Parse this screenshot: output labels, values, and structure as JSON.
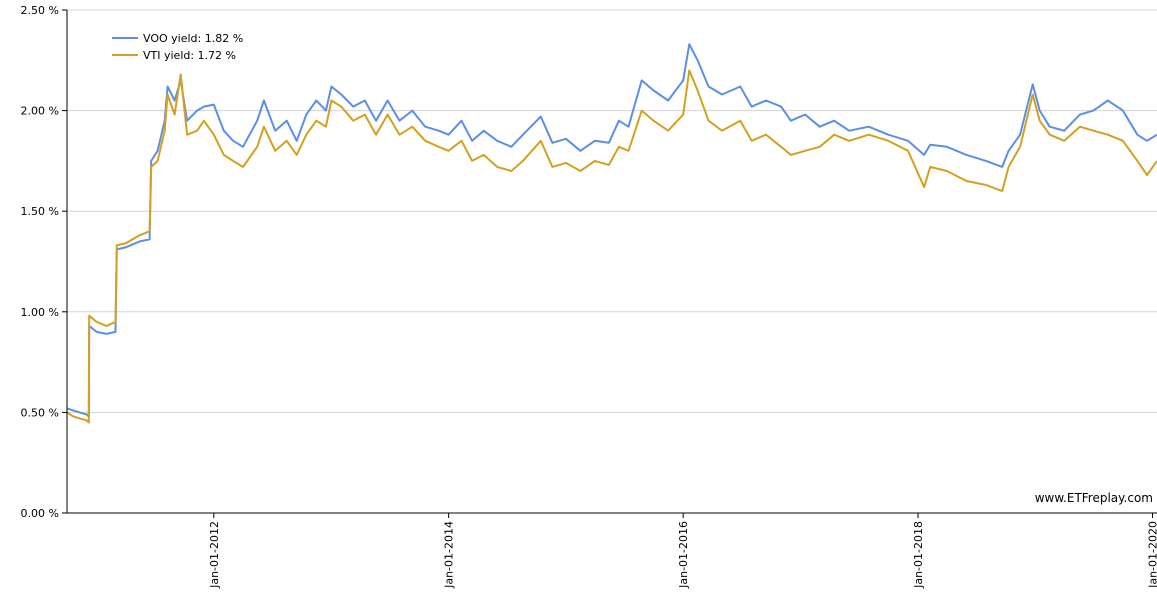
{
  "chart_data": {
    "type": "line",
    "ylim": [
      0,
      2.5
    ],
    "xlim": [
      "2010-10-01",
      "2020-01-15"
    ],
    "y_ticks": [
      "0.00 %",
      "0.50 %",
      "1.00 %",
      "1.50 %",
      "2.00 %",
      "2.50 %"
    ],
    "x_ticks": [
      "Jan-01-2012",
      "Jan-01-2014",
      "Jan-01-2016",
      "Jan-01-2018",
      "Jan-01-2020"
    ],
    "grid": true,
    "legend_position": "top-left",
    "legend": [
      "VOO yield: 1.82 %",
      "VTI yield: 1.72 %"
    ],
    "watermark": "www.ETFreplay.com",
    "series": [
      {
        "name": "VOO yield: 1.82 %",
        "color": "#5b8fe6",
        "points": [
          [
            "2010-10-01",
            0.52
          ],
          [
            "2010-10-20",
            0.51
          ],
          [
            "2010-11-10",
            0.5
          ],
          [
            "2010-12-01",
            0.49
          ],
          [
            "2010-12-08",
            0.48
          ],
          [
            "2010-12-09",
            0.93
          ],
          [
            "2011-01-01",
            0.9
          ],
          [
            "2011-02-01",
            0.89
          ],
          [
            "2011-03-01",
            0.9
          ],
          [
            "2011-03-05",
            1.31
          ],
          [
            "2011-04-01",
            1.32
          ],
          [
            "2011-05-15",
            1.35
          ],
          [
            "2011-06-15",
            1.36
          ],
          [
            "2011-06-20",
            1.75
          ],
          [
            "2011-07-10",
            1.8
          ],
          [
            "2011-08-01",
            1.95
          ],
          [
            "2011-08-10",
            2.12
          ],
          [
            "2011-09-01",
            2.05
          ],
          [
            "2011-09-20",
            2.15
          ],
          [
            "2011-10-10",
            1.95
          ],
          [
            "2011-11-10",
            2.0
          ],
          [
            "2011-12-01",
            2.02
          ],
          [
            "2012-01-01",
            2.03
          ],
          [
            "2012-02-01",
            1.9
          ],
          [
            "2012-03-01",
            1.85
          ],
          [
            "2012-04-01",
            1.82
          ],
          [
            "2012-05-15",
            1.95
          ],
          [
            "2012-06-05",
            2.05
          ],
          [
            "2012-07-10",
            1.9
          ],
          [
            "2012-08-15",
            1.95
          ],
          [
            "2012-09-15",
            1.85
          ],
          [
            "2012-10-15",
            1.98
          ],
          [
            "2012-11-15",
            2.05
          ],
          [
            "2012-12-15",
            2.0
          ],
          [
            "2013-01-01",
            2.12
          ],
          [
            "2013-02-01",
            2.08
          ],
          [
            "2013-03-10",
            2.02
          ],
          [
            "2013-04-15",
            2.05
          ],
          [
            "2013-05-20",
            1.95
          ],
          [
            "2013-06-25",
            2.05
          ],
          [
            "2013-08-01",
            1.95
          ],
          [
            "2013-09-10",
            2.0
          ],
          [
            "2013-10-20",
            1.92
          ],
          [
            "2013-12-01",
            1.9
          ],
          [
            "2014-01-01",
            1.88
          ],
          [
            "2014-02-10",
            1.95
          ],
          [
            "2014-03-15",
            1.85
          ],
          [
            "2014-04-20",
            1.9
          ],
          [
            "2014-06-01",
            1.85
          ],
          [
            "2014-07-15",
            1.82
          ],
          [
            "2014-08-20",
            1.88
          ],
          [
            "2014-10-15",
            1.97
          ],
          [
            "2014-11-20",
            1.84
          ],
          [
            "2015-01-01",
            1.86
          ],
          [
            "2015-02-15",
            1.8
          ],
          [
            "2015-04-01",
            1.85
          ],
          [
            "2015-05-15",
            1.84
          ],
          [
            "2015-06-15",
            1.95
          ],
          [
            "2015-07-15",
            1.92
          ],
          [
            "2015-08-25",
            2.15
          ],
          [
            "2015-10-01",
            2.1
          ],
          [
            "2015-11-15",
            2.05
          ],
          [
            "2016-01-01",
            2.15
          ],
          [
            "2016-01-20",
            2.33
          ],
          [
            "2016-02-15",
            2.25
          ],
          [
            "2016-03-20",
            2.12
          ],
          [
            "2016-05-01",
            2.08
          ],
          [
            "2016-06-27",
            2.12
          ],
          [
            "2016-08-01",
            2.02
          ],
          [
            "2016-09-15",
            2.05
          ],
          [
            "2016-11-01",
            2.02
          ],
          [
            "2016-12-01",
            1.95
          ],
          [
            "2017-01-15",
            1.98
          ],
          [
            "2017-03-01",
            1.92
          ],
          [
            "2017-04-15",
            1.95
          ],
          [
            "2017-06-01",
            1.9
          ],
          [
            "2017-08-01",
            1.92
          ],
          [
            "2017-10-01",
            1.88
          ],
          [
            "2017-12-01",
            1.85
          ],
          [
            "2018-01-20",
            1.78
          ],
          [
            "2018-02-08",
            1.83
          ],
          [
            "2018-04-01",
            1.82
          ],
          [
            "2018-06-01",
            1.78
          ],
          [
            "2018-08-01",
            1.75
          ],
          [
            "2018-09-20",
            1.72
          ],
          [
            "2018-10-10",
            1.8
          ],
          [
            "2018-11-15",
            1.88
          ],
          [
            "2018-12-24",
            2.13
          ],
          [
            "2019-01-15",
            2.0
          ],
          [
            "2019-02-15",
            1.92
          ],
          [
            "2019-04-01",
            1.9
          ],
          [
            "2019-05-20",
            1.98
          ],
          [
            "2019-07-01",
            2.0
          ],
          [
            "2019-08-15",
            2.05
          ],
          [
            "2019-10-01",
            2.0
          ],
          [
            "2019-11-15",
            1.88
          ],
          [
            "2019-12-15",
            1.85
          ],
          [
            "2020-01-15",
            1.88
          ]
        ]
      },
      {
        "name": "VTI yield: 1.72 %",
        "color": "#d4a020",
        "points": [
          [
            "2010-10-01",
            0.5
          ],
          [
            "2010-10-20",
            0.48
          ],
          [
            "2010-11-10",
            0.47
          ],
          [
            "2010-12-01",
            0.46
          ],
          [
            "2010-12-08",
            0.45
          ],
          [
            "2010-12-09",
            0.98
          ],
          [
            "2011-01-01",
            0.95
          ],
          [
            "2011-02-01",
            0.93
          ],
          [
            "2011-03-01",
            0.95
          ],
          [
            "2011-03-05",
            1.33
          ],
          [
            "2011-04-01",
            1.34
          ],
          [
            "2011-05-15",
            1.38
          ],
          [
            "2011-06-15",
            1.4
          ],
          [
            "2011-06-20",
            1.72
          ],
          [
            "2011-07-10",
            1.75
          ],
          [
            "2011-08-01",
            1.9
          ],
          [
            "2011-08-10",
            2.08
          ],
          [
            "2011-09-01",
            1.98
          ],
          [
            "2011-09-20",
            2.18
          ],
          [
            "2011-10-10",
            1.88
          ],
          [
            "2011-11-10",
            1.9
          ],
          [
            "2011-12-01",
            1.95
          ],
          [
            "2012-01-01",
            1.88
          ],
          [
            "2012-02-01",
            1.78
          ],
          [
            "2012-03-01",
            1.75
          ],
          [
            "2012-04-01",
            1.72
          ],
          [
            "2012-05-15",
            1.82
          ],
          [
            "2012-06-05",
            1.92
          ],
          [
            "2012-07-10",
            1.8
          ],
          [
            "2012-08-15",
            1.85
          ],
          [
            "2012-09-15",
            1.78
          ],
          [
            "2012-10-15",
            1.88
          ],
          [
            "2012-11-15",
            1.95
          ],
          [
            "2012-12-15",
            1.92
          ],
          [
            "2013-01-01",
            2.05
          ],
          [
            "2013-02-01",
            2.02
          ],
          [
            "2013-03-10",
            1.95
          ],
          [
            "2013-04-15",
            1.98
          ],
          [
            "2013-05-20",
            1.88
          ],
          [
            "2013-06-25",
            1.98
          ],
          [
            "2013-08-01",
            1.88
          ],
          [
            "2013-09-10",
            1.92
          ],
          [
            "2013-10-20",
            1.85
          ],
          [
            "2013-12-01",
            1.82
          ],
          [
            "2014-01-01",
            1.8
          ],
          [
            "2014-02-10",
            1.85
          ],
          [
            "2014-03-15",
            1.75
          ],
          [
            "2014-04-20",
            1.78
          ],
          [
            "2014-06-01",
            1.72
          ],
          [
            "2014-07-15",
            1.7
          ],
          [
            "2014-08-20",
            1.75
          ],
          [
            "2014-10-15",
            1.85
          ],
          [
            "2014-11-20",
            1.72
          ],
          [
            "2015-01-01",
            1.74
          ],
          [
            "2015-02-15",
            1.7
          ],
          [
            "2015-04-01",
            1.75
          ],
          [
            "2015-05-15",
            1.73
          ],
          [
            "2015-06-15",
            1.82
          ],
          [
            "2015-07-15",
            1.8
          ],
          [
            "2015-08-25",
            2.0
          ],
          [
            "2015-10-01",
            1.95
          ],
          [
            "2015-11-15",
            1.9
          ],
          [
            "2016-01-01",
            1.98
          ],
          [
            "2016-01-20",
            2.2
          ],
          [
            "2016-02-15",
            2.1
          ],
          [
            "2016-03-20",
            1.95
          ],
          [
            "2016-05-01",
            1.9
          ],
          [
            "2016-06-27",
            1.95
          ],
          [
            "2016-08-01",
            1.85
          ],
          [
            "2016-09-15",
            1.88
          ],
          [
            "2016-11-01",
            1.82
          ],
          [
            "2016-12-01",
            1.78
          ],
          [
            "2017-01-15",
            1.8
          ],
          [
            "2017-03-01",
            1.82
          ],
          [
            "2017-04-15",
            1.88
          ],
          [
            "2017-06-01",
            1.85
          ],
          [
            "2017-08-01",
            1.88
          ],
          [
            "2017-10-01",
            1.85
          ],
          [
            "2017-12-01",
            1.8
          ],
          [
            "2018-01-20",
            1.62
          ],
          [
            "2018-02-08",
            1.72
          ],
          [
            "2018-04-01",
            1.7
          ],
          [
            "2018-06-01",
            1.65
          ],
          [
            "2018-08-01",
            1.63
          ],
          [
            "2018-09-20",
            1.6
          ],
          [
            "2018-10-10",
            1.72
          ],
          [
            "2018-11-15",
            1.82
          ],
          [
            "2018-12-24",
            2.08
          ],
          [
            "2019-01-15",
            1.95
          ],
          [
            "2019-02-15",
            1.88
          ],
          [
            "2019-04-01",
            1.85
          ],
          [
            "2019-05-20",
            1.92
          ],
          [
            "2019-07-01",
            1.9
          ],
          [
            "2019-08-15",
            1.88
          ],
          [
            "2019-10-01",
            1.85
          ],
          [
            "2019-11-15",
            1.75
          ],
          [
            "2019-12-15",
            1.68
          ],
          [
            "2020-01-15",
            1.75
          ]
        ]
      }
    ]
  }
}
